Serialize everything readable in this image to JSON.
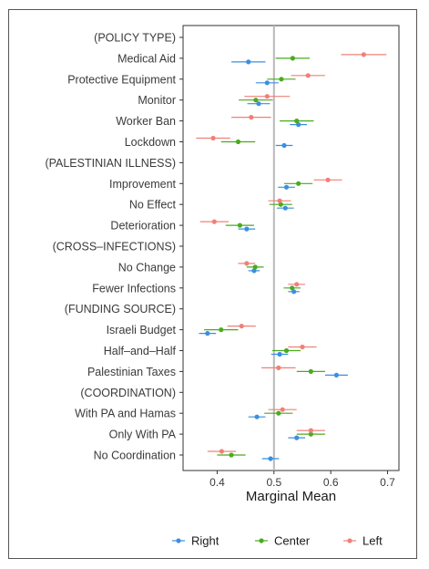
{
  "chart_data": {
    "type": "scatter",
    "xlabel": "Marginal Mean",
    "ylabel": "",
    "xlim": [
      0.34,
      0.72
    ],
    "x_ticks": [
      "0.4",
      "0.5",
      "0.6",
      "0.7"
    ],
    "x_tick_values": [
      0.4,
      0.5,
      0.6,
      0.7
    ],
    "reference_line": 0.5,
    "grid": false,
    "legend_position": "bottom",
    "categories": [
      "(POLICY TYPE)",
      "Medical Aid",
      "Protective Equipment",
      "Monitor",
      "Worker Ban",
      "Lockdown",
      "(PALESTINIAN ILLNESS)",
      "Improvement",
      "No Effect",
      "Deterioration",
      "(CROSS–INFECTIONS)",
      "No Change",
      "Fewer Infections",
      "(FUNDING SOURCE)",
      "Israeli Budget",
      "Half–and–Half",
      "Palestinian Taxes",
      "(COORDINATION)",
      "With PA and Hamas",
      "Only With PA",
      "No Coordination"
    ],
    "series": [
      {
        "name": "Right",
        "color": "#3b8fe0",
        "values": [
          null,
          0.455,
          0.488,
          0.473,
          0.543,
          0.518,
          null,
          0.522,
          0.52,
          0.452,
          null,
          0.465,
          0.535,
          null,
          0.383,
          0.51,
          0.61,
          null,
          0.47,
          0.54,
          0.494
        ],
        "ci": [
          null,
          [
            0.425,
            0.485
          ],
          [
            0.468,
            0.508
          ],
          [
            0.453,
            0.493
          ],
          [
            0.528,
            0.558
          ],
          [
            0.503,
            0.533
          ],
          null,
          [
            0.507,
            0.537
          ],
          [
            0.505,
            0.535
          ],
          [
            0.437,
            0.467
          ],
          null,
          [
            0.455,
            0.475
          ],
          [
            0.525,
            0.545
          ],
          null,
          [
            0.368,
            0.398
          ],
          [
            0.495,
            0.525
          ],
          [
            0.59,
            0.63
          ],
          null,
          [
            0.455,
            0.485
          ],
          [
            0.525,
            0.555
          ],
          [
            0.479,
            0.509
          ]
        ]
      },
      {
        "name": "Center",
        "color": "#4aab1e",
        "values": [
          null,
          0.533,
          0.513,
          0.468,
          0.54,
          0.437,
          null,
          0.543,
          0.512,
          0.44,
          null,
          0.467,
          0.532,
          null,
          0.407,
          0.522,
          0.565,
          null,
          0.508,
          0.565,
          0.425
        ],
        "ci": [
          null,
          [
            0.503,
            0.563
          ],
          [
            0.488,
            0.538
          ],
          [
            0.438,
            0.498
          ],
          [
            0.51,
            0.57
          ],
          [
            0.407,
            0.467
          ],
          null,
          [
            0.518,
            0.568
          ],
          [
            0.492,
            0.532
          ],
          [
            0.415,
            0.465
          ],
          null,
          [
            0.452,
            0.482
          ],
          [
            0.517,
            0.547
          ],
          null,
          [
            0.377,
            0.437
          ],
          [
            0.497,
            0.547
          ],
          [
            0.54,
            0.59
          ],
          null,
          [
            0.483,
            0.533
          ],
          [
            0.54,
            0.59
          ],
          [
            0.4,
            0.45
          ]
        ]
      },
      {
        "name": "Left",
        "color": "#f08078",
        "values": [
          null,
          0.658,
          0.56,
          0.488,
          0.46,
          0.393,
          null,
          0.595,
          0.51,
          0.395,
          null,
          0.452,
          0.54,
          null,
          0.443,
          0.55,
          0.508,
          null,
          0.515,
          0.565,
          0.408
        ],
        "ci": [
          null,
          [
            0.618,
            0.698
          ],
          [
            0.53,
            0.59
          ],
          [
            0.448,
            0.528
          ],
          [
            0.425,
            0.495
          ],
          [
            0.363,
            0.423
          ],
          null,
          [
            0.57,
            0.62
          ],
          [
            0.49,
            0.53
          ],
          [
            0.37,
            0.42
          ],
          null,
          [
            0.437,
            0.467
          ],
          [
            0.525,
            0.555
          ],
          null,
          [
            0.418,
            0.468
          ],
          [
            0.525,
            0.575
          ],
          [
            0.478,
            0.538
          ],
          null,
          [
            0.49,
            0.54
          ],
          [
            0.54,
            0.59
          ],
          [
            0.383,
            0.433
          ]
        ]
      }
    ]
  }
}
